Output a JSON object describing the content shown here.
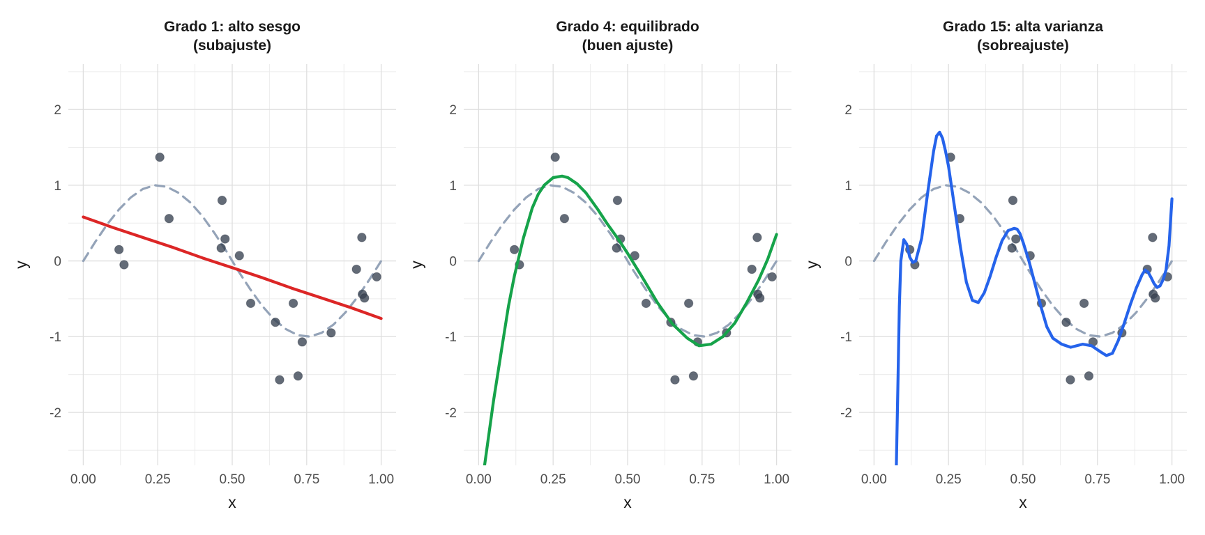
{
  "chart_data": [
    {
      "type": "line",
      "title_lines": [
        "Grado 1: alto sesgo",
        "(subajuste)"
      ],
      "xlabel": "x",
      "ylabel": "y",
      "xlim": [
        0,
        1
      ],
      "ylim": [
        -2.7,
        2.6
      ],
      "xticks": [
        0,
        0.25,
        0.5,
        0.75,
        1
      ],
      "xtick_labels": [
        "0.00",
        "0.25",
        "0.50",
        "0.75",
        "1.00"
      ],
      "yticks": [
        -2,
        -1,
        0,
        1,
        2
      ],
      "ytick_labels": [
        "-2",
        "-1",
        "0",
        "1",
        "2"
      ],
      "grid": true,
      "fit_color": "#dc2626",
      "fit_degree": 1,
      "series": [
        {
          "kind": "fit",
          "x": [
            0.0,
            0.1,
            0.2,
            0.3,
            0.4,
            0.5,
            0.6,
            0.7,
            0.8,
            0.9,
            1.0
          ],
          "y": [
            0.58,
            0.44,
            0.31,
            0.18,
            0.04,
            -0.09,
            -0.22,
            -0.36,
            -0.49,
            -0.62,
            -0.76
          ]
        }
      ]
    },
    {
      "type": "line",
      "title_lines": [
        "Grado 4: equilibrado",
        "(buen ajuste)"
      ],
      "xlabel": "x",
      "ylabel": "y",
      "xlim": [
        0,
        1
      ],
      "ylim": [
        -2.7,
        2.6
      ],
      "xticks": [
        0,
        0.25,
        0.5,
        0.75,
        1
      ],
      "xtick_labels": [
        "0.00",
        "0.25",
        "0.50",
        "0.75",
        "1.00"
      ],
      "yticks": [
        -2,
        -1,
        0,
        1,
        2
      ],
      "ytick_labels": [
        "-2",
        "-1",
        "0",
        "1",
        "2"
      ],
      "grid": true,
      "fit_color": "#16a34a",
      "fit_degree": 4,
      "series": [
        {
          "kind": "fit",
          "x": [
            0.02,
            0.05,
            0.08,
            0.1,
            0.12,
            0.15,
            0.18,
            0.2,
            0.22,
            0.25,
            0.28,
            0.3,
            0.33,
            0.36,
            0.4,
            0.43,
            0.47,
            0.5,
            0.55,
            0.6,
            0.65,
            0.7,
            0.74,
            0.78,
            0.82,
            0.86,
            0.9,
            0.94,
            0.97,
            1.0
          ],
          "y": [
            -2.7,
            -1.85,
            -1.1,
            -0.6,
            -0.2,
            0.3,
            0.7,
            0.88,
            1.0,
            1.1,
            1.12,
            1.1,
            1.02,
            0.9,
            0.68,
            0.5,
            0.28,
            0.1,
            -0.22,
            -0.55,
            -0.83,
            -1.02,
            -1.12,
            -1.1,
            -1.0,
            -0.82,
            -0.55,
            -0.25,
            0.02,
            0.35
          ]
        }
      ]
    },
    {
      "type": "line",
      "title_lines": [
        "Grado 15: alta varianza",
        "(sobreajuste)"
      ],
      "xlabel": "x",
      "ylabel": "y",
      "xlim": [
        0,
        1
      ],
      "ylim": [
        -2.7,
        2.6
      ],
      "xticks": [
        0,
        0.25,
        0.5,
        0.75,
        1
      ],
      "xtick_labels": [
        "0.00",
        "0.25",
        "0.50",
        "0.75",
        "1.00"
      ],
      "yticks": [
        -2,
        -1,
        0,
        1,
        2
      ],
      "ytick_labels": [
        "-2",
        "-1",
        "0",
        "1",
        "2"
      ],
      "grid": true,
      "fit_color": "#2563eb",
      "fit_degree": 15,
      "series": [
        {
          "kind": "fit",
          "x": [
            0.075,
            0.08,
            0.085,
            0.09,
            0.1,
            0.11,
            0.12,
            0.13,
            0.14,
            0.16,
            0.18,
            0.2,
            0.21,
            0.22,
            0.23,
            0.24,
            0.25,
            0.27,
            0.29,
            0.31,
            0.33,
            0.35,
            0.37,
            0.39,
            0.41,
            0.43,
            0.45,
            0.47,
            0.48,
            0.49,
            0.5,
            0.52,
            0.54,
            0.56,
            0.58,
            0.6,
            0.63,
            0.66,
            0.7,
            0.73,
            0.76,
            0.78,
            0.8,
            0.82,
            0.84,
            0.86,
            0.88,
            0.9,
            0.91,
            0.92,
            0.93,
            0.94,
            0.95,
            0.96,
            0.97,
            0.98,
            0.99,
            1.0
          ],
          "y": [
            -2.7,
            -1.7,
            -0.6,
            0.0,
            0.28,
            0.22,
            0.05,
            -0.02,
            0.0,
            0.3,
            0.9,
            1.45,
            1.65,
            1.7,
            1.62,
            1.45,
            1.25,
            0.72,
            0.18,
            -0.28,
            -0.52,
            -0.55,
            -0.42,
            -0.2,
            0.05,
            0.27,
            0.4,
            0.43,
            0.42,
            0.36,
            0.25,
            0.0,
            -0.3,
            -0.6,
            -0.87,
            -1.02,
            -1.1,
            -1.14,
            -1.1,
            -1.12,
            -1.2,
            -1.25,
            -1.22,
            -1.05,
            -0.82,
            -0.58,
            -0.36,
            -0.18,
            -0.12,
            -0.15,
            -0.22,
            -0.3,
            -0.35,
            -0.33,
            -0.25,
            -0.12,
            0.2,
            0.82
          ]
        }
      ]
    }
  ],
  "shared": {
    "true_curve_color": "#94a3b8",
    "point_color": "#374151",
    "true_curve": {
      "x": [
        0.0,
        0.04,
        0.08,
        0.12,
        0.16,
        0.2,
        0.24,
        0.28,
        0.32,
        0.36,
        0.4,
        0.44,
        0.48,
        0.52,
        0.56,
        0.6,
        0.64,
        0.68,
        0.72,
        0.76,
        0.8,
        0.84,
        0.88,
        0.92,
        0.96,
        1.0
      ],
      "y": [
        0.0,
        0.25,
        0.48,
        0.68,
        0.84,
        0.95,
        1.0,
        0.98,
        0.9,
        0.77,
        0.59,
        0.37,
        0.13,
        -0.13,
        -0.37,
        -0.59,
        -0.77,
        -0.9,
        -0.98,
        -1.0,
        -0.95,
        -0.84,
        -0.68,
        -0.48,
        -0.25,
        0.0
      ]
    },
    "points": {
      "x": [
        0.12,
        0.137,
        0.257,
        0.288,
        0.463,
        0.466,
        0.476,
        0.524,
        0.562,
        0.645,
        0.659,
        0.705,
        0.721,
        0.735,
        0.832,
        0.917,
        0.935,
        0.937,
        0.944,
        0.985
      ],
      "y": [
        0.15,
        -0.05,
        1.37,
        0.56,
        0.17,
        0.8,
        0.29,
        0.07,
        -0.56,
        -0.81,
        -1.57,
        -0.56,
        -1.52,
        -1.07,
        -0.95,
        -0.11,
        0.31,
        -0.44,
        -0.49,
        -0.21
      ]
    }
  }
}
